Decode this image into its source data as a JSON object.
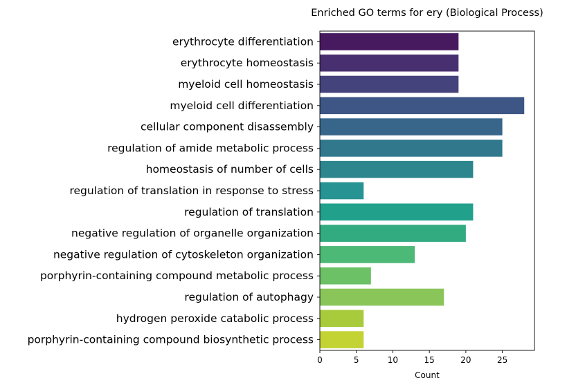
{
  "chart_data": {
    "type": "bar",
    "orientation": "horizontal",
    "title": "Enriched GO terms for ery (Biological Process)",
    "xlabel": "Count",
    "ylabel": "",
    "xlim": [
      0,
      29.4
    ],
    "xticks": [
      "0",
      "5",
      "10",
      "15",
      "20",
      "25"
    ],
    "grid": false,
    "categories": [
      "erythrocyte differentiation",
      "erythrocyte homeostasis",
      "myeloid cell homeostasis",
      "myeloid cell differentiation",
      "cellular component disassembly",
      "regulation of amide metabolic process",
      "homeostasis of number of cells",
      "regulation of translation in response to stress",
      "regulation of translation",
      "negative regulation of organelle organization",
      "negative regulation of cytoskeleton organization",
      "porphyrin-containing compound metabolic process",
      "regulation of autophagy",
      "hydrogen peroxide catabolic process",
      "porphyrin-containing compound biosynthetic process"
    ],
    "values": [
      19,
      19,
      19,
      28,
      25,
      25,
      21,
      6,
      21,
      20,
      13,
      7,
      17,
      6,
      6
    ],
    "colors": [
      "#471a5f",
      "#483070",
      "#45437b",
      "#3e5685",
      "#38668b",
      "#32788d",
      "#2d868d",
      "#279393",
      "#21a08c",
      "#32ab80",
      "#4db976",
      "#6cc065",
      "#8ac55a",
      "#a8cb3c",
      "#c4d334"
    ]
  }
}
